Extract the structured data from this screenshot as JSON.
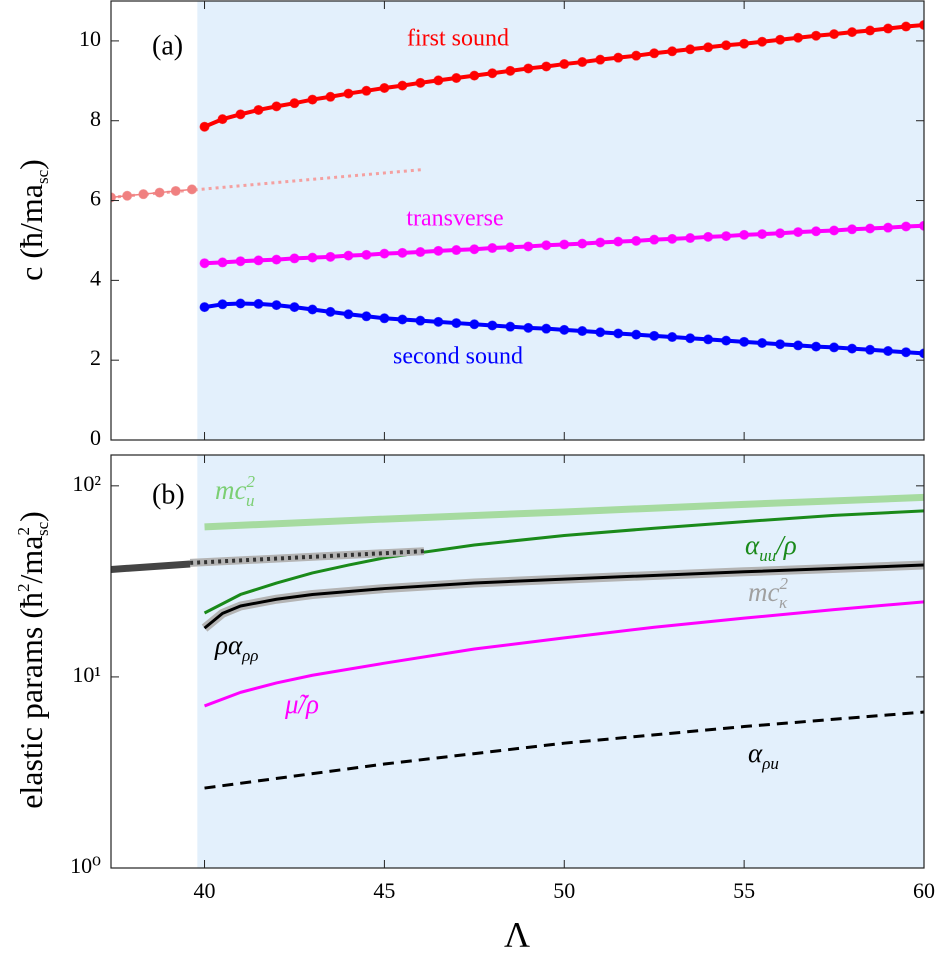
{
  "chart_data": [
    {
      "type": "line",
      "ylabel": [
        "c (ħ/ma",
        "sc",
        ")"
      ],
      "annotations": [
        "(a)",
        "first sound",
        "transverse",
        "second sound"
      ],
      "xlim": [
        37.4,
        60
      ],
      "xticks": [
        40,
        45,
        50,
        55,
        60
      ],
      "ylim": [
        0,
        11
      ],
      "yticks": [
        0,
        2,
        4,
        6,
        8,
        10
      ],
      "shaded_xrange": [
        39.8,
        60
      ],
      "x": [
        40,
        40.5,
        41,
        41.5,
        42,
        42.5,
        43,
        43.5,
        44,
        44.5,
        45,
        45.5,
        46,
        46.5,
        47,
        47.5,
        48,
        48.5,
        49,
        49.5,
        50,
        50.5,
        51,
        51.5,
        52,
        52.5,
        53,
        53.5,
        54,
        54.5,
        55,
        55.5,
        56,
        56.5,
        57,
        57.5,
        58,
        58.5,
        59,
        59.5,
        60
      ],
      "series": [
        {
          "color": "#ff0000",
          "marker": true,
          "linestyle": "solid",
          "values": [
            7.85,
            8.04,
            8.16,
            8.27,
            8.36,
            8.44,
            8.53,
            8.6,
            8.68,
            8.75,
            8.82,
            8.88,
            8.95,
            9.01,
            9.07,
            9.13,
            9.19,
            9.25,
            9.31,
            9.36,
            9.42,
            9.47,
            9.53,
            9.58,
            9.63,
            9.69,
            9.74,
            9.79,
            9.84,
            9.89,
            9.93,
            9.98,
            10.03,
            10.08,
            10.13,
            10.17,
            10.22,
            10.26,
            10.31,
            10.36,
            10.4
          ]
        },
        {
          "color": "#ff00ff",
          "marker": true,
          "linestyle": "solid",
          "values": [
            4.43,
            4.45,
            4.48,
            4.5,
            4.52,
            4.55,
            4.57,
            4.59,
            4.62,
            4.64,
            4.67,
            4.69,
            4.71,
            4.74,
            4.76,
            4.78,
            4.81,
            4.83,
            4.85,
            4.88,
            4.9,
            4.92,
            4.95,
            4.97,
            4.99,
            5.02,
            5.04,
            5.06,
            5.09,
            5.11,
            5.14,
            5.16,
            5.18,
            5.21,
            5.23,
            5.25,
            5.28,
            5.3,
            5.32,
            5.35,
            5.37
          ]
        },
        {
          "color": "#0000ff",
          "marker": true,
          "linestyle": "solid",
          "values": [
            3.33,
            3.4,
            3.42,
            3.41,
            3.38,
            3.33,
            3.27,
            3.21,
            3.15,
            3.1,
            3.05,
            3.02,
            2.99,
            2.96,
            2.93,
            2.9,
            2.87,
            2.84,
            2.81,
            2.79,
            2.76,
            2.73,
            2.7,
            2.67,
            2.64,
            2.61,
            2.58,
            2.55,
            2.52,
            2.49,
            2.46,
            2.43,
            2.4,
            2.37,
            2.34,
            2.32,
            2.29,
            2.26,
            2.23,
            2.2,
            2.17
          ]
        },
        {
          "color": "#f4a0a0",
          "marker": false,
          "linestyle": "dotted",
          "x": [
            37.4,
            46.1
          ],
          "values": [
            6.08,
            6.78
          ]
        },
        {
          "color": "#f08080",
          "marker": true,
          "linestyle": "solid",
          "x": [
            37.4,
            37.85,
            38.3,
            38.75,
            39.2,
            39.65
          ],
          "values": [
            6.08,
            6.12,
            6.16,
            6.2,
            6.24,
            6.28
          ]
        }
      ]
    },
    {
      "type": "line",
      "ylabel": [
        "elastic params (ħ",
        "2",
        "/ma",
        "2",
        "sc",
        ")"
      ],
      "xlabel": "Λ",
      "annotations": [
        "(b)",
        [
          "mc",
          "2",
          "u"
        ],
        [
          "α",
          "uu",
          "/ρ"
        ],
        [
          "mc",
          "2",
          "κ"
        ],
        [
          "ρα",
          "ρρ"
        ],
        "μ̃/ρ",
        [
          "α",
          "ρu"
        ]
      ],
      "xlim": [
        37.4,
        60
      ],
      "xticks": [
        40,
        45,
        50,
        55,
        60
      ],
      "ylim": [
        1,
        145
      ],
      "log_y": true,
      "yticks": [
        {
          "value": 1,
          "label": "10⁰"
        },
        {
          "value": 10,
          "label": "10¹"
        },
        {
          "value": 100,
          "label": "10²"
        }
      ],
      "shaded_xrange": [
        39.8,
        60
      ],
      "series": [
        {
          "color": "#a6dba0",
          "linestyle": "solid",
          "x": [
            40,
            45,
            50,
            55,
            60
          ],
          "values": [
            61,
            67,
            73,
            80,
            87
          ]
        },
        {
          "color": "#1a8a1a",
          "linestyle": "solid",
          "x": [
            40,
            41,
            42,
            43,
            44,
            45,
            47.5,
            50,
            52.5,
            55,
            57.5,
            60
          ],
          "values": [
            21.6,
            27,
            31,
            35,
            38.5,
            42,
            49,
            55,
            60,
            65,
            70,
            74
          ]
        },
        {
          "color": "#b4b4b4",
          "linestyle": "solid",
          "x": [
            40,
            40.5,
            41,
            42,
            43,
            45,
            47.5,
            50,
            55,
            60
          ],
          "values": [
            18,
            21.5,
            23.5,
            25.5,
            27,
            29,
            31,
            32.5,
            35.5,
            38.5
          ]
        },
        {
          "color": "#000000",
          "linestyle": "solid",
          "x": [
            40,
            40.5,
            41,
            42,
            43,
            45,
            47.5,
            50,
            55,
            60
          ],
          "values": [
            18,
            21.5,
            23.5,
            25.5,
            27,
            29,
            31,
            32.5,
            35.5,
            38.5
          ]
        },
        {
          "color": "#444444",
          "linestyle": "solid",
          "x": [
            37.4,
            39.6
          ],
          "values": [
            36.5,
            39
          ]
        },
        {
          "color": "#b4b4b4",
          "linestyle": "solid",
          "x": [
            39.6,
            46.1
          ],
          "values": [
            39.5,
            45.5
          ]
        },
        {
          "color": "#333333",
          "linestyle": "dotted",
          "x": [
            39.6,
            46.1
          ],
          "values": [
            39.5,
            45.5
          ]
        },
        {
          "color": "#ff00ff",
          "linestyle": "solid",
          "x": [
            40,
            41,
            42,
            43,
            45,
            47.5,
            50,
            52.5,
            55,
            57.5,
            60
          ],
          "values": [
            7.05,
            8.3,
            9.3,
            10.2,
            11.8,
            14,
            16,
            18.2,
            20.3,
            22.5,
            24.7
          ]
        },
        {
          "color": "#000000",
          "linestyle": "dashed",
          "x": [
            40,
            45,
            50,
            55,
            60
          ],
          "values": [
            2.62,
            3.5,
            4.5,
            5.5,
            6.55
          ]
        }
      ]
    }
  ]
}
